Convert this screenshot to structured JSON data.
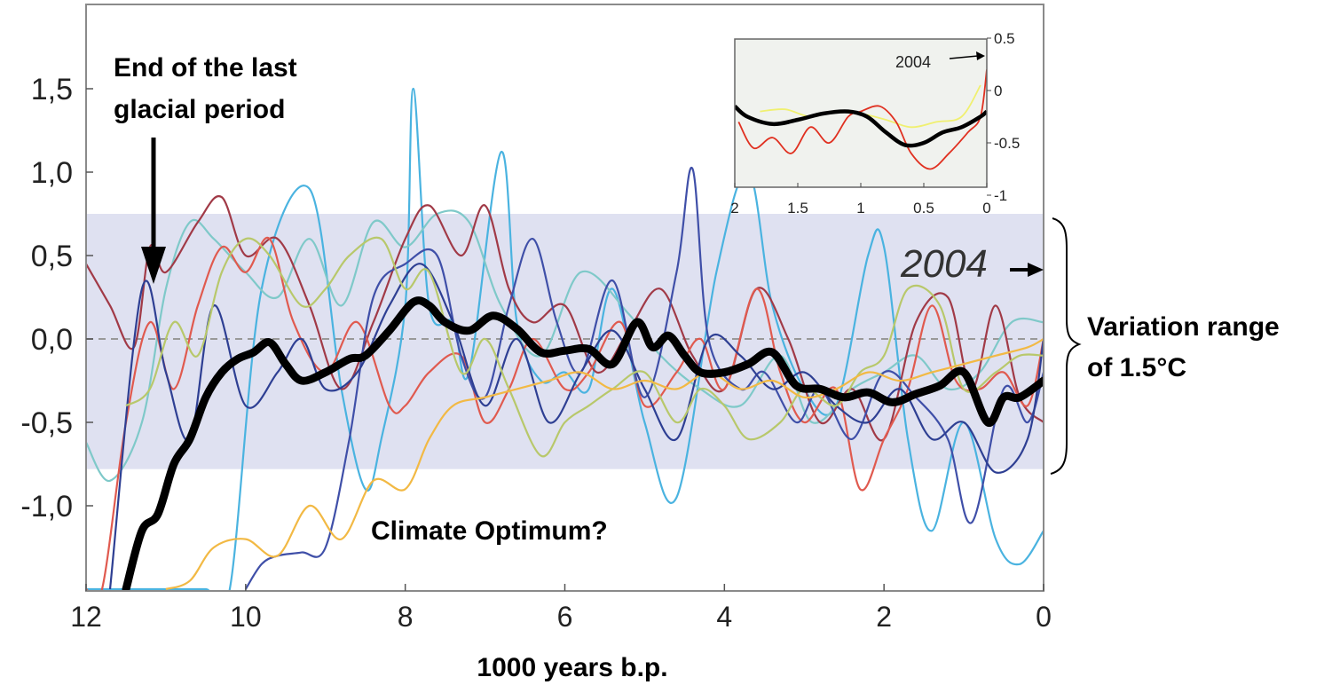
{
  "chart_data": {
    "type": "line",
    "title": "",
    "xlabel": "1000 years b.p.",
    "ylabel": "",
    "xlim": [
      12,
      0
    ],
    "ylim": [
      -1.5,
      2.0
    ],
    "x_ticks": [
      "12",
      "10",
      "8",
      "6",
      "4",
      "2",
      "0"
    ],
    "y_ticks": [
      "1,5",
      "1,0",
      "0,5",
      "0,0",
      "-0,5",
      "-1,0"
    ],
    "grid": false,
    "band": {
      "from": -0.78,
      "to": 0.75,
      "color": "#dfe1f1"
    },
    "zero_line": {
      "y": 0.0,
      "color": "#999999"
    },
    "mean_series": {
      "color": "#000000",
      "x": [
        11.5,
        11.3,
        11.1,
        10.9,
        10.7,
        10.5,
        10.3,
        10.1,
        9.9,
        9.7,
        9.5,
        9.3,
        9.0,
        8.7,
        8.5,
        8.2,
        7.9,
        7.7,
        7.5,
        7.2,
        6.9,
        6.6,
        6.3,
        6.0,
        5.7,
        5.4,
        5.1,
        4.9,
        4.7,
        4.5,
        4.3,
        4.0,
        3.7,
        3.4,
        3.1,
        2.8,
        2.5,
        2.2,
        1.9,
        1.6,
        1.3,
        1.0,
        0.7,
        0.5,
        0.3,
        0.0
      ],
      "y": [
        -1.5,
        -1.15,
        -1.05,
        -0.75,
        -0.6,
        -0.35,
        -0.2,
        -0.12,
        -0.08,
        -0.02,
        -0.15,
        -0.25,
        -0.2,
        -0.12,
        -0.1,
        0.05,
        0.22,
        0.2,
        0.1,
        0.05,
        0.14,
        0.06,
        -0.08,
        -0.07,
        -0.06,
        -0.15,
        0.1,
        -0.05,
        0.02,
        -0.1,
        -0.2,
        -0.2,
        -0.15,
        -0.08,
        -0.28,
        -0.3,
        -0.35,
        -0.32,
        -0.38,
        -0.33,
        -0.28,
        -0.2,
        -0.5,
        -0.35,
        -0.35,
        -0.25
      ]
    },
    "series": [
      {
        "color": "#4ab3e0",
        "x": [
          12,
          11.5,
          11.0,
          10.5,
          10.2,
          9.8,
          9.2,
          8.8,
          8.5,
          8.3,
          8.0,
          7.9,
          7.7,
          7.4,
          7.2,
          6.8,
          6.6,
          6.3,
          6.0,
          5.7,
          5.4,
          5.0,
          4.6,
          4.1,
          3.7,
          3.4,
          3.0,
          2.6,
          2.2,
          2.0,
          1.7,
          1.4,
          1.0,
          0.6,
          0.3,
          0.0
        ],
        "y": [
          -1.5,
          -1.5,
          -1.5,
          -1.5,
          -1.5,
          0.3,
          0.9,
          -0.3,
          -0.9,
          -0.6,
          0.2,
          1.5,
          0.2,
          0.1,
          -0.2,
          1.12,
          0.1,
          -0.25,
          -0.2,
          -0.3,
          0.3,
          -0.5,
          -0.95,
          0.4,
          1.0,
          0.2,
          -0.3,
          -0.4,
          0.5,
          0.55,
          -0.6,
          -1.15,
          -0.5,
          -1.2,
          -1.35,
          -1.15
        ]
      },
      {
        "color": "#7fc9c9",
        "x": [
          12,
          11.7,
          11.3,
          11.0,
          10.7,
          10.4,
          10.0,
          9.6,
          9.2,
          8.8,
          8.4,
          8.0,
          7.6,
          7.2,
          6.8,
          6.3,
          5.8,
          5.2,
          4.8,
          4.3,
          3.8,
          3.3,
          2.9,
          2.4,
          2.0,
          1.6,
          1.2,
          0.8,
          0.4,
          0.0
        ],
        "y": [
          -0.62,
          -0.85,
          -0.5,
          0.3,
          0.7,
          0.6,
          0.4,
          0.25,
          0.6,
          0.2,
          0.7,
          0.55,
          0.75,
          0.7,
          0.2,
          -0.1,
          0.4,
          0.15,
          -0.1,
          -0.3,
          -0.4,
          -0.1,
          -0.5,
          -0.3,
          -0.2,
          -0.1,
          -0.3,
          -0.2,
          0.1,
          0.1
        ]
      },
      {
        "color": "#a13a47",
        "x": [
          12,
          11.7,
          11.4,
          11.2,
          11.0,
          10.6,
          10.3,
          10.0,
          9.6,
          9.2,
          8.8,
          8.4,
          8.0,
          7.7,
          7.3,
          7.0,
          6.7,
          6.4,
          6.0,
          5.6,
          5.2,
          4.8,
          4.4,
          4.0,
          3.6,
          3.2,
          2.8,
          2.4,
          2.0,
          1.6,
          1.2,
          0.9,
          0.6,
          0.3,
          0.0
        ],
        "y": [
          0.45,
          0.2,
          -0.05,
          0.55,
          0.4,
          0.7,
          0.85,
          0.5,
          0.6,
          0.2,
          -0.3,
          0.1,
          0.6,
          0.8,
          0.5,
          0.8,
          0.3,
          0.1,
          0.2,
          -0.2,
          0.05,
          0.3,
          -0.1,
          -0.3,
          0.3,
          0.0,
          -0.5,
          -0.3,
          -0.6,
          0.1,
          0.25,
          -0.3,
          0.2,
          -0.35,
          -0.5
        ]
      },
      {
        "color": "#e05a4f",
        "x": [
          12,
          11.8,
          11.5,
          11.2,
          10.9,
          10.6,
          10.3,
          10.0,
          9.7,
          9.4,
          9.0,
          8.6,
          8.2,
          8.0,
          7.7,
          7.3,
          7.0,
          6.7,
          6.4,
          6.0,
          5.7,
          5.3,
          5.0,
          4.6,
          4.3,
          4.0,
          3.6,
          3.3,
          3.0,
          2.6,
          2.3,
          2.0,
          1.7,
          1.4,
          1.1,
          0.8,
          0.5,
          0.2,
          0.0
        ],
        "y": [
          -1.5,
          -1.5,
          -0.5,
          0.1,
          -0.3,
          0.2,
          0.55,
          0.4,
          0.6,
          0.1,
          -0.2,
          0.1,
          -0.4,
          -0.4,
          -0.2,
          -0.1,
          -0.5,
          -0.3,
          0.0,
          -0.3,
          -0.2,
          0.1,
          -0.4,
          -0.2,
          0.0,
          -0.3,
          0.3,
          -0.2,
          -0.5,
          -0.3,
          -0.9,
          -0.6,
          -0.3,
          0.2,
          -0.25,
          -0.3,
          -0.2,
          -0.4,
          0.0
        ]
      },
      {
        "color": "#3f4fa8",
        "x": [
          10.0,
          9.8,
          9.6,
          9.3,
          9.0,
          8.7,
          8.4,
          8.0,
          7.6,
          7.3,
          7.0,
          6.7,
          6.4,
          6.1,
          5.8,
          5.4,
          5.0,
          4.6,
          4.4,
          4.2,
          3.8,
          3.5,
          3.1,
          2.8,
          2.4,
          2.0,
          1.6,
          1.2,
          0.9,
          0.5,
          0.2,
          0.0
        ],
        "y": [
          -1.5,
          -1.35,
          -1.3,
          -1.28,
          -1.25,
          -0.6,
          0.25,
          0.45,
          0.5,
          -0.1,
          -0.35,
          0.2,
          0.6,
          0.1,
          -0.2,
          0.35,
          -0.35,
          0.4,
          1.02,
          0.0,
          -0.3,
          -0.2,
          -0.5,
          -0.3,
          -0.6,
          -0.2,
          -0.35,
          -0.6,
          -1.1,
          -0.3,
          -0.5,
          -0.2
        ]
      },
      {
        "color": "#2e3f93",
        "x": [
          11.7,
          11.3,
          11.0,
          10.7,
          10.4,
          10.0,
          9.6,
          9.3,
          9.0,
          8.6,
          8.2,
          7.8,
          7.4,
          7.0,
          6.6,
          6.2,
          5.8,
          5.4,
          5.0,
          4.6,
          4.2,
          3.8,
          3.4,
          3.0,
          2.6,
          2.2,
          1.8,
          1.4,
          1.0,
          0.6,
          0.2,
          0.0
        ],
        "y": [
          -1.5,
          0.3,
          -0.2,
          -0.6,
          0.2,
          -0.4,
          -0.2,
          0.0,
          -0.3,
          -0.2,
          0.2,
          0.45,
          0.1,
          -0.4,
          0.0,
          -0.5,
          -0.2,
          0.05,
          -0.3,
          -0.6,
          0.0,
          -0.1,
          -0.3,
          -0.2,
          -0.4,
          -0.5,
          -0.3,
          -0.6,
          -0.5,
          -0.8,
          -0.6,
          0.0
        ]
      },
      {
        "color": "#b8c86b",
        "x": [
          11.5,
          11.2,
          10.9,
          10.6,
          10.3,
          10.0,
          9.7,
          9.3,
          9.0,
          8.7,
          8.3,
          8.0,
          7.7,
          7.3,
          7.0,
          6.7,
          6.3,
          6.0,
          5.7,
          5.4,
          5.0,
          4.6,
          4.3,
          4.0,
          3.7,
          3.3,
          3.0,
          2.6,
          2.3,
          2.0,
          1.7,
          1.3,
          1.0,
          0.6,
          0.3,
          0.0
        ],
        "y": [
          -0.4,
          -0.3,
          0.1,
          -0.1,
          0.4,
          0.6,
          0.5,
          0.2,
          0.3,
          0.5,
          0.6,
          0.3,
          0.4,
          -0.2,
          0.0,
          -0.3,
          -0.7,
          -0.5,
          -0.4,
          -0.3,
          -0.2,
          -0.5,
          -0.3,
          -0.4,
          -0.6,
          -0.5,
          -0.3,
          -0.4,
          -0.2,
          -0.1,
          0.3,
          0.2,
          -0.3,
          -0.2,
          -0.1,
          -0.1
        ]
      },
      {
        "color": "#f2b944",
        "x": [
          11.0,
          10.7,
          10.4,
          10.0,
          9.6,
          9.2,
          8.8,
          8.4,
          8.0,
          7.7,
          7.4,
          7.0,
          6.6,
          6.2,
          5.8,
          5.4,
          5.0,
          4.6,
          4.2,
          3.8,
          3.4,
          3.0,
          2.6,
          2.2,
          1.8,
          1.4,
          1.0,
          0.6,
          0.2,
          0.0
        ],
        "y": [
          -1.5,
          -1.45,
          -1.25,
          -1.2,
          -1.3,
          -1.0,
          -1.2,
          -0.85,
          -0.9,
          -0.6,
          -0.4,
          -0.35,
          -0.3,
          -0.25,
          -0.2,
          -0.3,
          -0.25,
          -0.3,
          -0.2,
          -0.3,
          -0.25,
          -0.35,
          -0.3,
          -0.2,
          -0.25,
          -0.2,
          -0.15,
          -0.1,
          -0.05,
          0.0
        ]
      }
    ],
    "annotations": {
      "glacial_line1": "End of the last",
      "glacial_line2": "glacial period",
      "optimum": "Climate Optimum?",
      "variation_line1": "Variation range",
      "variation_line2": "of 1.5°C",
      "year_label": "2004"
    },
    "inset": {
      "type": "line",
      "xlim": [
        2,
        0
      ],
      "ylim": [
        -1,
        0.6
      ],
      "x_ticks": [
        "2",
        "1.5",
        "1",
        "0.5",
        "0"
      ],
      "y_ticks": [
        "0.5",
        "0",
        "-0.5",
        "-1"
      ],
      "year_label": "2004",
      "series": [
        {
          "color": "#f0f070",
          "x": [
            1.8,
            1.6,
            1.4,
            1.2,
            1.0,
            0.8,
            0.6,
            0.4,
            0.2,
            0.05
          ],
          "y": [
            -0.2,
            -0.18,
            -0.25,
            -0.2,
            -0.22,
            -0.28,
            -0.35,
            -0.3,
            -0.25,
            0.05
          ]
        },
        {
          "color": "#e03020",
          "x": [
            1.97,
            1.85,
            1.7,
            1.55,
            1.4,
            1.25,
            1.1,
            1.0,
            0.85,
            0.72,
            0.6,
            0.45,
            0.3,
            0.15,
            0.05,
            0.0
          ],
          "y": [
            -0.3,
            -0.55,
            -0.45,
            -0.6,
            -0.35,
            -0.5,
            -0.25,
            -0.2,
            -0.15,
            -0.3,
            -0.6,
            -0.75,
            -0.6,
            -0.4,
            -0.25,
            0.2
          ]
        },
        {
          "color": "#000000",
          "x": [
            2.0,
            1.9,
            1.7,
            1.5,
            1.3,
            1.1,
            0.95,
            0.8,
            0.65,
            0.5,
            0.35,
            0.2,
            0.05,
            0.0
          ],
          "y": [
            -0.15,
            -0.25,
            -0.32,
            -0.28,
            -0.22,
            -0.2,
            -0.25,
            -0.4,
            -0.52,
            -0.5,
            -0.4,
            -0.35,
            -0.25,
            -0.2
          ]
        }
      ]
    }
  }
}
